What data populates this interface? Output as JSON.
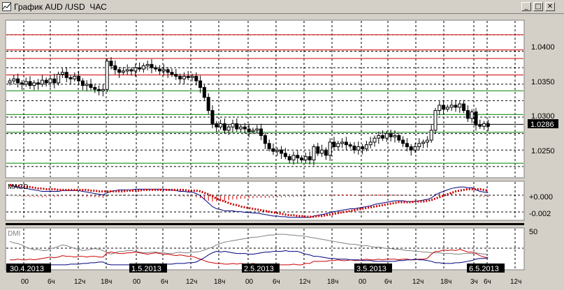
{
  "window": {
    "title": "График AUD /USD  ЧАС",
    "buttons": {
      "minimize": "_",
      "maximize": "□",
      "close": "✕"
    }
  },
  "colors": {
    "bg": "#ffffff",
    "candle": "#000000",
    "macd_hist": "#cc0000",
    "macd_line": "#000080",
    "macd_signal": "#cc0000",
    "dmi_plus": "#cc0000",
    "dmi_minus": "#000080",
    "adx": "#808080",
    "resistance": "#cc0000",
    "support": "#008000",
    "current": "#000000"
  },
  "chart_data": [
    {
      "type": "candlestick",
      "title": "",
      "ylim": [
        1.021,
        1.0445
      ],
      "yticks": [
        "1.0400",
        "1.0350",
        "1.0300",
        "1.0250"
      ],
      "current_price": "1.0286",
      "x_date_labels": [
        "30.4.2013",
        "1.5.2013",
        "2.5.2013",
        "3.5.2013",
        "6.5.2013"
      ],
      "x_hour_labels": [
        "00",
        "6ч",
        "12ч",
        "18ч",
        "00",
        "6ч",
        "12ч",
        "18ч",
        "00",
        "6ч",
        "12ч",
        "18ч",
        "00",
        "6ч",
        "12ч",
        "18ч",
        "3ч",
        "6ч",
        "12ч"
      ],
      "resistance_levels": [
        1.0425,
        1.0402,
        1.0389,
        1.0364
      ],
      "support_levels": [
        1.034,
        1.0304,
        1.0277,
        1.023
      ],
      "current_level": 1.0289,
      "grid": true,
      "closes": [
        1.0355,
        1.0358,
        1.0352,
        1.035,
        1.0354,
        1.0348,
        1.0352,
        1.035,
        1.0356,
        1.0352,
        1.0358,
        1.0352,
        1.0365,
        1.0368,
        1.036,
        1.0358,
        1.0362,
        1.0355,
        1.0348,
        1.035,
        1.0345,
        1.0342,
        1.034,
        1.0342,
        1.0385,
        1.0378,
        1.0372,
        1.0368,
        1.037,
        1.0372,
        1.037,
        1.0375,
        1.0373,
        1.0378,
        1.038,
        1.0375,
        1.0373,
        1.037,
        1.0372,
        1.0368,
        1.0365,
        1.0362,
        1.0358,
        1.0362,
        1.036,
        1.0362,
        1.0355,
        1.0345,
        1.033,
        1.031,
        1.029,
        1.0285,
        1.029,
        1.028,
        1.0285,
        1.029,
        1.0282,
        1.0285,
        1.0282,
        1.0278,
        1.028,
        1.0282,
        1.0272,
        1.026,
        1.0252,
        1.0248,
        1.025,
        1.0245,
        1.024,
        1.0235,
        1.0242,
        1.0238,
        1.0235,
        1.024,
        1.0235,
        1.0255,
        1.0245,
        1.025,
        1.0242,
        1.0262,
        1.0255,
        1.026,
        1.0262,
        1.0258,
        1.0256,
        1.025,
        1.0255,
        1.0252,
        1.0258,
        1.0262,
        1.0268,
        1.0272,
        1.0268,
        1.0275,
        1.027,
        1.0272,
        1.0265,
        1.026,
        1.0255,
        1.025,
        1.0255,
        1.026,
        1.0262,
        1.0265,
        1.028,
        1.031,
        1.0318,
        1.0312,
        1.0315,
        1.0318,
        1.0315,
        1.032,
        1.031,
        1.0298,
        1.0308,
        1.0288,
        1.0286,
        1.029,
        1.0286
      ],
      "series_names": []
    },
    {
      "type": "line",
      "title": "MACD",
      "yticks": [
        "+0.000",
        "-0.002"
      ],
      "ylim": [
        -0.0032,
        0.0018
      ],
      "macd": [
        0.0014,
        0.0013,
        0.0012,
        0.0011,
        0.001,
        0.0009,
        0.0008,
        0.0007,
        0.0006,
        0.0006,
        0.0006,
        0.0006,
        0.0006,
        0.0007,
        0.0007,
        0.0007,
        0.0007,
        0.0007,
        0.0006,
        0.0005,
        0.0004,
        0.0003,
        0.0002,
        0.0001,
        0.0004,
        0.0006,
        0.0007,
        0.0008,
        0.0008,
        0.0008,
        0.0008,
        0.0009,
        0.0009,
        0.0009,
        0.0009,
        0.0009,
        0.0009,
        0.0009,
        0.0009,
        0.0008,
        0.0008,
        0.0007,
        0.0006,
        0.0006,
        0.0005,
        0.0005,
        0.0003,
        0.0,
        -0.0005,
        -0.001,
        -0.0015,
        -0.0018,
        -0.0019,
        -0.0021,
        -0.0021,
        -0.0021,
        -0.0022,
        -0.0022,
        -0.0023,
        -0.0023,
        -0.0024,
        -0.0024,
        -0.0025,
        -0.0026,
        -0.0027,
        -0.0028,
        -0.0028,
        -0.0029,
        -0.0029,
        -0.003,
        -0.003,
        -0.003,
        -0.003,
        -0.003,
        -0.003,
        -0.0028,
        -0.0027,
        -0.0026,
        -0.0025,
        -0.0023,
        -0.0022,
        -0.0021,
        -0.002,
        -0.0019,
        -0.0018,
        -0.0018,
        -0.0017,
        -0.0016,
        -0.0015,
        -0.0014,
        -0.0012,
        -0.0011,
        -0.001,
        -0.0009,
        -0.0008,
        -0.0007,
        -0.0007,
        -0.0007,
        -0.0008,
        -0.0008,
        -0.0008,
        -0.0007,
        -0.0006,
        -0.0005,
        -0.0003,
        0.0001,
        0.0004,
        0.0006,
        0.0008,
        0.001,
        0.0011,
        0.0012,
        0.0012,
        0.0011,
        0.0011,
        0.0008,
        0.0006,
        0.0005,
        0.0004
      ],
      "signal": [
        0.0015,
        0.0014,
        0.0014,
        0.0013,
        0.0012,
        0.0012,
        0.0011,
        0.001,
        0.001,
        0.0009,
        0.0009,
        0.0009,
        0.0008,
        0.0008,
        0.0008,
        0.0008,
        0.0008,
        0.0008,
        0.0008,
        0.0008,
        0.0007,
        0.0007,
        0.0006,
        0.0006,
        0.0006,
        0.0006,
        0.0006,
        0.0006,
        0.0006,
        0.0007,
        0.0007,
        0.0007,
        0.0007,
        0.0008,
        0.0008,
        0.0008,
        0.0008,
        0.0008,
        0.0008,
        0.0008,
        0.0008,
        0.0008,
        0.0008,
        0.0008,
        0.0007,
        0.0007,
        0.0007,
        0.0006,
        0.0004,
        0.0002,
        -0.0001,
        -0.0004,
        -0.0006,
        -0.0008,
        -0.001,
        -0.0012,
        -0.0013,
        -0.0015,
        -0.0016,
        -0.0017,
        -0.0018,
        -0.0019,
        -0.002,
        -0.0021,
        -0.0022,
        -0.0023,
        -0.0024,
        -0.0025,
        -0.0026,
        -0.0027,
        -0.0027,
        -0.0028,
        -0.0028,
        -0.0029,
        -0.0029,
        -0.0029,
        -0.0028,
        -0.0028,
        -0.0027,
        -0.0026,
        -0.0025,
        -0.0024,
        -0.0023,
        -0.0022,
        -0.0021,
        -0.002,
        -0.0019,
        -0.0018,
        -0.0017,
        -0.0016,
        -0.0015,
        -0.0014,
        -0.0013,
        -0.0012,
        -0.0011,
        -0.001,
        -0.0009,
        -0.0009,
        -0.0009,
        -0.0009,
        -0.0008,
        -0.0008,
        -0.0008,
        -0.0007,
        -0.0006,
        -0.0004,
        -0.0002,
        0.0,
        0.0002,
        0.0004,
        0.0006,
        0.0007,
        0.0008,
        0.0009,
        0.0009,
        0.0009,
        0.0009,
        0.0008,
        0.0007
      ]
    },
    {
      "type": "line",
      "title": "DMI",
      "ytick": "50",
      "ylim": [
        0,
        55
      ],
      "adx": [
        38,
        36,
        35,
        33,
        30,
        28,
        26,
        27,
        25,
        25,
        28,
        29,
        31,
        33,
        32,
        30,
        28,
        27,
        25,
        26,
        27,
        28,
        27,
        25,
        22,
        20,
        22,
        24,
        24,
        25,
        25,
        24,
        23,
        22,
        22,
        23,
        23,
        22,
        22,
        21,
        21,
        22,
        23,
        22,
        22,
        23,
        23,
        24,
        26,
        28,
        30,
        33,
        35,
        37,
        38,
        39,
        40,
        41,
        42,
        43,
        44,
        44,
        45,
        46,
        47,
        47,
        48,
        48,
        48,
        47,
        47,
        46,
        46,
        45,
        44,
        43,
        42,
        41,
        40,
        39,
        38,
        37,
        36,
        35,
        34,
        34,
        33,
        32,
        32,
        31,
        30,
        30,
        29,
        28,
        28,
        27,
        27,
        26,
        25,
        25,
        24,
        24,
        23,
        23,
        22,
        22,
        22,
        21,
        21,
        21,
        20,
        20,
        21,
        21,
        21,
        22,
        21,
        20,
        20
      ],
      "di_plus": [
        12,
        12,
        13,
        12,
        12,
        13,
        12,
        13,
        14,
        15,
        16,
        15,
        16,
        18,
        17,
        17,
        16,
        17,
        17,
        16,
        17,
        17,
        16,
        16,
        22,
        23,
        22,
        21,
        21,
        22,
        22,
        23,
        22,
        21,
        20,
        21,
        22,
        21,
        20,
        20,
        19,
        18,
        19,
        18,
        17,
        17,
        15,
        13,
        11,
        9,
        8,
        7,
        7,
        6,
        6,
        7,
        6,
        7,
        6,
        6,
        7,
        6,
        5,
        5,
        5,
        6,
        5,
        5,
        5,
        5,
        6,
        5,
        5,
        7,
        7,
        10,
        10,
        10,
        10,
        11,
        11,
        12,
        11,
        11,
        12,
        11,
        11,
        12,
        13,
        12,
        12,
        13,
        12,
        13,
        13,
        13,
        12,
        13,
        13,
        12,
        12,
        13,
        13,
        14,
        20,
        24,
        24,
        26,
        25,
        26,
        25,
        27,
        25,
        23,
        23,
        21,
        18,
        16,
        15
      ],
      "di_minus": [
        4,
        5,
        5,
        5,
        5,
        6,
        6,
        6,
        6,
        5,
        5,
        5,
        5,
        5,
        5,
        6,
        6,
        6,
        7,
        7,
        8,
        8,
        9,
        9,
        6,
        5,
        5,
        5,
        5,
        5,
        5,
        5,
        5,
        5,
        5,
        5,
        5,
        5,
        6,
        6,
        6,
        7,
        7,
        7,
        8,
        8,
        9,
        12,
        15,
        19,
        22,
        24,
        23,
        24,
        23,
        22,
        21,
        21,
        21,
        20,
        20,
        21,
        22,
        23,
        23,
        24,
        24,
        24,
        25,
        24,
        24,
        24,
        22,
        20,
        19,
        17,
        17,
        16,
        15,
        14,
        14,
        13,
        13,
        13,
        12,
        12,
        12,
        11,
        11,
        11,
        10,
        10,
        10,
        10,
        10,
        10,
        11,
        11,
        12,
        12,
        13,
        12,
        12,
        11,
        10,
        8,
        8,
        7,
        7,
        7,
        8,
        8,
        9,
        10,
        11,
        13,
        14,
        14,
        15
      ]
    }
  ]
}
